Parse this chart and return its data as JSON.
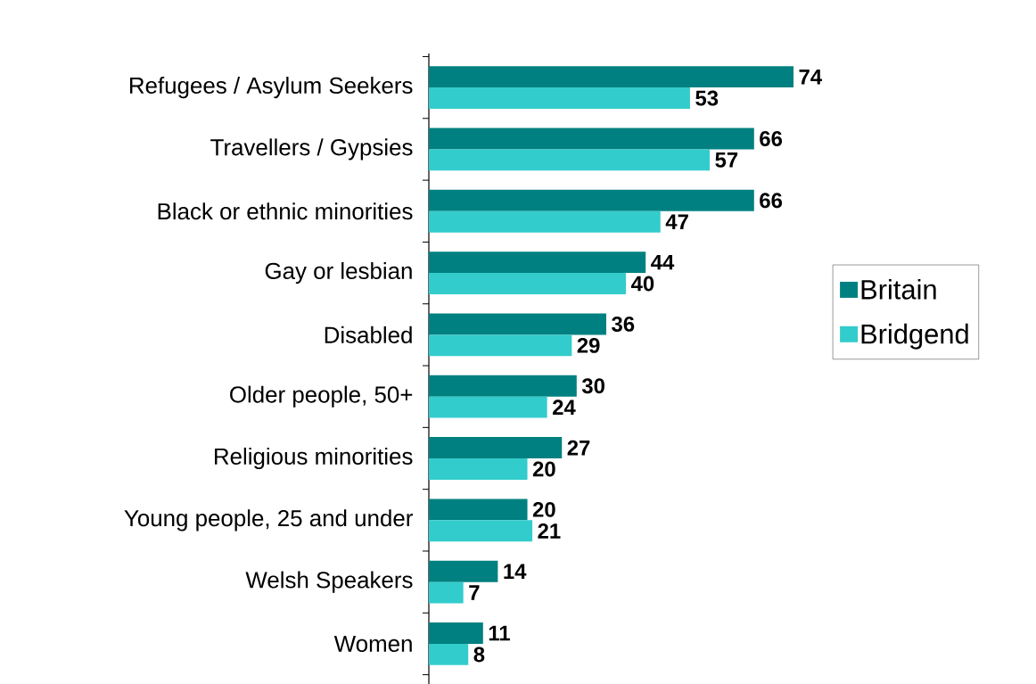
{
  "chart_data": {
    "type": "bar",
    "orientation": "horizontal",
    "categories": [
      "Refugees / Asylum Seekers",
      "Travellers / Gypsies",
      "Black or ethnic minorities",
      "Gay or lesbian",
      "Disabled",
      "Older people, 50+",
      "Religious minorities",
      "Young people, 25 and under",
      "Welsh Speakers",
      "Women"
    ],
    "series": [
      {
        "name": "Britain",
        "color": "#008080",
        "values": [
          74,
          66,
          66,
          44,
          36,
          30,
          27,
          20,
          14,
          11
        ]
      },
      {
        "name": "Bridgend",
        "color": "#33cccc",
        "values": [
          53,
          57,
          47,
          40,
          29,
          24,
          20,
          21,
          7,
          8
        ]
      }
    ],
    "data_labels": true,
    "legend": "right"
  }
}
